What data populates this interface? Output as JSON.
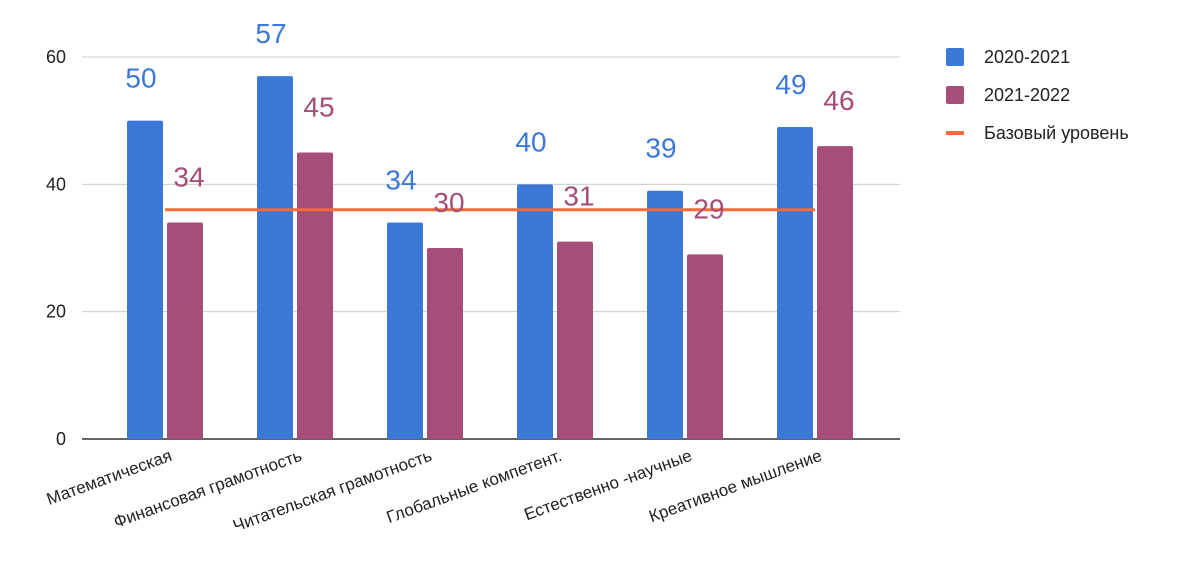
{
  "title": "",
  "chart_data": {
    "type": "bar",
    "categories": [
      "Математическая",
      "Финансовая грамотность",
      "Читательская грамотность",
      "Глобальные компетент.",
      "Естественно -научные",
      "Креативное мышление"
    ],
    "series": [
      {
        "name": "2020-2021",
        "values": [
          50,
          57,
          34,
          40,
          39,
          49
        ],
        "color": "#3c78d8"
      },
      {
        "name": "2021-2022",
        "values": [
          34,
          45,
          30,
          31,
          29,
          46
        ],
        "color": "#a64d79"
      }
    ],
    "reference_line": {
      "name": "Базовый уровень",
      "value": 36,
      "color": "#f26b38"
    },
    "ylim": [
      0,
      60
    ],
    "yticks": [
      0,
      20,
      40,
      60
    ],
    "grid": true,
    "legend_position": "right",
    "xlabel": "",
    "ylabel": ""
  }
}
